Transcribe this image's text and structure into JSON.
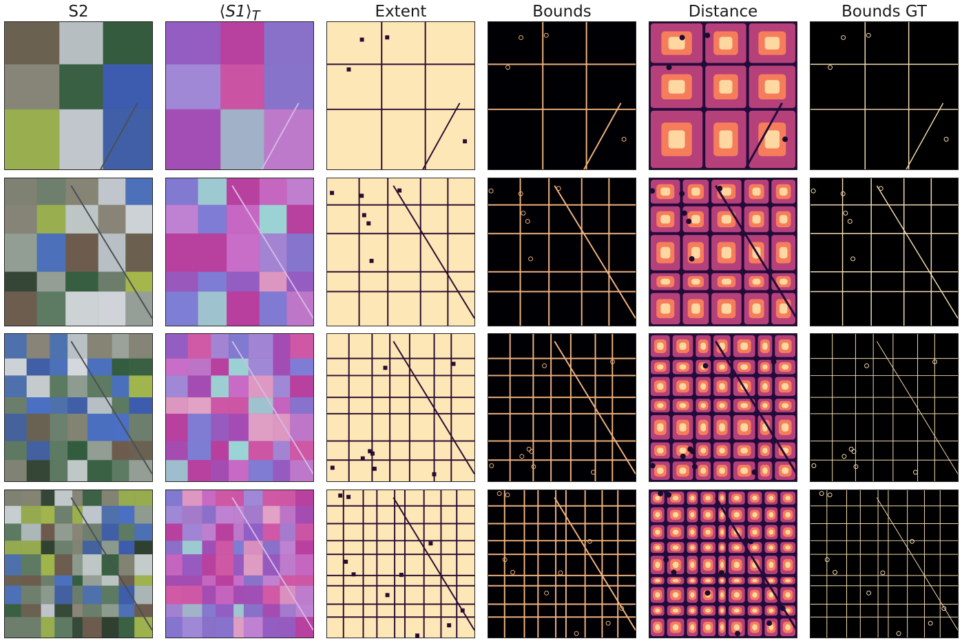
{
  "headers": {
    "s2": "S2",
    "s1_left": "⟨",
    "s1_main": "S1",
    "s1_right": "⟩",
    "s1_sub": "T",
    "extent": "Extent",
    "bounds": "Bounds",
    "distance": "Distance",
    "bounds_gt": "Bounds GT"
  },
  "palette": {
    "s2": [
      "#5d7a62",
      "#6f7f6e",
      "#8a8578",
      "#3d5bb0",
      "#c3c8d0",
      "#2c3a2c",
      "#a6b94a",
      "#6e5a4c",
      "#4a6fc4",
      "#9aa29a",
      "#d6d9de",
      "#315a3c"
    ],
    "s1": [
      "#b8409e",
      "#c86fc9",
      "#8f60c6",
      "#d05aa6",
      "#9f8ad8",
      "#e3a8c8",
      "#a04fb6",
      "#7c7fd6",
      "#bf83d2",
      "#9ad7d6"
    ],
    "extent_bg": "#fde7b6",
    "extent_line": "#2a0c33",
    "bounds_bg": "#000004",
    "bounds_line": "#f0b27e",
    "distance_bg": "#230b3a",
    "distance_hi": "#fed8a0",
    "gt_bg": "#000000",
    "gt_line": "#f6ddb2"
  },
  "grid": {
    "rows": 4,
    "columns": [
      "s2",
      "s1",
      "extent",
      "bounds",
      "distance",
      "bounds_gt"
    ]
  }
}
